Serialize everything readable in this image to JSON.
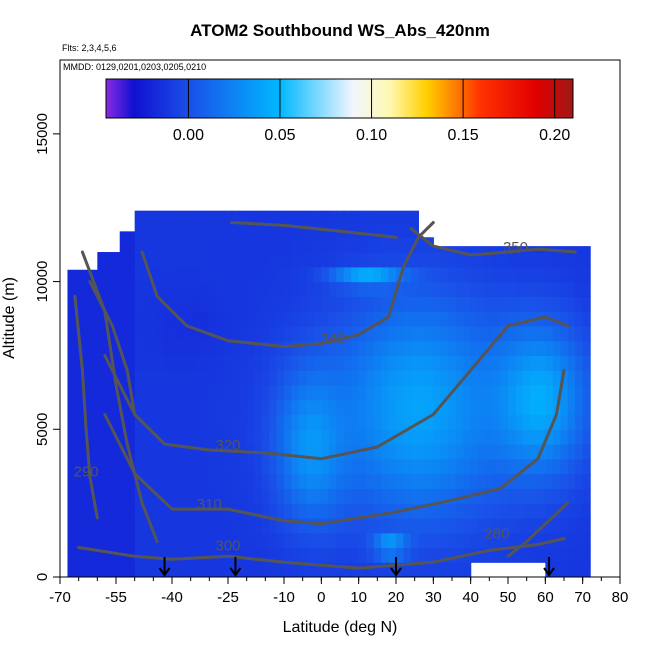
{
  "chart_data": {
    "type": "heatmap",
    "title": "ATOM2 Southbound WS_Abs_420nm",
    "flights_label": "Flts: 2,3,4,5,6",
    "mmdd_label": "MMDD: 0129,0201,0203,0205,0210",
    "xlabel": "Latitude (deg N)",
    "ylabel": "Altitude (m)",
    "xlim": [
      -70,
      80
    ],
    "ylim": [
      0,
      17500
    ],
    "x_ticks": [
      {
        "value": -70,
        "label": "-70"
      },
      {
        "value": -55,
        "label": "-55"
      },
      {
        "value": -40,
        "label": "-40"
      },
      {
        "value": -25,
        "label": "-25"
      },
      {
        "value": -10,
        "label": "-10"
      },
      {
        "value": 0,
        "label": "0"
      },
      {
        "value": 10,
        "label": "10"
      },
      {
        "value": 20,
        "label": "20"
      },
      {
        "value": 30,
        "label": "30"
      },
      {
        "value": 40,
        "label": "40"
      },
      {
        "value": 50,
        "label": "50"
      },
      {
        "value": 60,
        "label": "60"
      },
      {
        "value": 70,
        "label": "70"
      },
      {
        "value": 80,
        "label": "80"
      }
    ],
    "y_ticks": [
      {
        "value": 0,
        "label": "0"
      },
      {
        "value": 5000,
        "label": "5000"
      },
      {
        "value": 10000,
        "label": "10000"
      },
      {
        "value": 15000,
        "label": "15000"
      }
    ],
    "colorbar": {
      "range": [
        -0.045,
        0.21
      ],
      "ticks": [
        {
          "value": 0.0,
          "label": "0.00"
        },
        {
          "value": 0.05,
          "label": "0.05"
        },
        {
          "value": 0.1,
          "label": "0.10"
        },
        {
          "value": 0.15,
          "label": "0.15"
        },
        {
          "value": 0.2,
          "label": "0.20"
        }
      ],
      "stops": [
        {
          "value": -0.045,
          "color": "#8a2be2"
        },
        {
          "value": -0.03,
          "color": "#1010d0"
        },
        {
          "value": 0.0,
          "color": "#1a4fe8"
        },
        {
          "value": 0.05,
          "color": "#00b8ff"
        },
        {
          "value": 0.09,
          "color": "#f2f6ff"
        },
        {
          "value": 0.11,
          "color": "#fff8b0"
        },
        {
          "value": 0.13,
          "color": "#ffd000"
        },
        {
          "value": 0.16,
          "color": "#ff3000"
        },
        {
          "value": 0.19,
          "color": "#e00000"
        },
        {
          "value": 0.21,
          "color": "#a01818"
        }
      ]
    },
    "grid": false,
    "data_region": {
      "lat_min": -68,
      "lat_max": 71,
      "alt_min": 0,
      "alt_max": 12500
    },
    "highlight_patches": [
      {
        "lat": [
          -10,
          5
        ],
        "alt": [
          2500,
          6500
        ],
        "value": 0.035
      },
      {
        "lat": [
          10,
          42
        ],
        "alt": [
          3000,
          8500
        ],
        "value": 0.04
      },
      {
        "lat": [
          48,
          68
        ],
        "alt": [
          4000,
          8000
        ],
        "value": 0.045
      },
      {
        "lat": [
          5,
          20
        ],
        "alt": [
          9900,
          10400
        ],
        "value": 0.048
      },
      {
        "lat": [
          15,
          22
        ],
        "alt": [
          800,
          1300
        ],
        "value": 0.05
      },
      {
        "lat": [
          -45,
          -28
        ],
        "alt": [
          7500,
          9500
        ],
        "value": -0.015
      }
    ],
    "contours": [
      {
        "label": "300",
        "label_at": [
          -25,
          900
        ],
        "points": [
          [
            -65,
            1000
          ],
          [
            -50,
            700
          ],
          [
            -40,
            600
          ],
          [
            -25,
            700
          ],
          [
            -10,
            500
          ],
          [
            10,
            300
          ],
          [
            30,
            500
          ],
          [
            45,
            900
          ],
          [
            58,
            1100
          ],
          [
            65,
            1300
          ]
        ]
      },
      {
        "label": "310",
        "label_at": [
          -30,
          2300
        ],
        "points": [
          [
            -58,
            5500
          ],
          [
            -50,
            3500
          ],
          [
            -40,
            2300
          ],
          [
            -25,
            2300
          ],
          [
            -10,
            1900
          ],
          [
            0,
            1800
          ],
          [
            10,
            2000
          ],
          [
            20,
            2200
          ],
          [
            35,
            2600
          ],
          [
            48,
            3000
          ],
          [
            58,
            4000
          ],
          [
            63,
            5500
          ],
          [
            65,
            7000
          ]
        ]
      },
      {
        "label": "320",
        "label_at": [
          -25,
          4300
        ],
        "points": [
          [
            -58,
            7500
          ],
          [
            -50,
            5500
          ],
          [
            -42,
            4500
          ],
          [
            -30,
            4300
          ],
          [
            -15,
            4200
          ],
          [
            0,
            4000
          ],
          [
            15,
            4400
          ],
          [
            30,
            5500
          ],
          [
            40,
            7000
          ],
          [
            50,
            8500
          ],
          [
            60,
            8800
          ],
          [
            66,
            8500
          ]
        ]
      },
      {
        "label": "340",
        "label_at": [
          3,
          7900
        ],
        "points": [
          [
            -48,
            11000
          ],
          [
            -44,
            9500
          ],
          [
            -36,
            8500
          ],
          [
            -25,
            8000
          ],
          [
            -10,
            7800
          ],
          [
            0,
            7900
          ],
          [
            10,
            8200
          ],
          [
            18,
            8800
          ],
          [
            22,
            10500
          ],
          [
            26,
            11500
          ],
          [
            30,
            12000
          ]
        ]
      },
      {
        "label": "350",
        "label_at": [
          52,
          11000
        ],
        "points": [
          [
            24,
            11800
          ],
          [
            30,
            11200
          ],
          [
            40,
            10900
          ],
          [
            50,
            11000
          ],
          [
            58,
            11100
          ],
          [
            68,
            11000
          ]
        ]
      },
      {
        "label": "280",
        "label_at": [
          47,
          1300
        ],
        "points": [
          [
            50,
            700
          ],
          [
            55,
            1200
          ],
          [
            60,
            1800
          ],
          [
            66,
            2500
          ]
        ]
      },
      {
        "label": "290",
        "label_at": [
          -63,
          3400
        ],
        "points": [
          [
            -66,
            9500
          ],
          [
            -64,
            7000
          ],
          [
            -63,
            5000
          ],
          [
            -62,
            3400
          ],
          [
            -60,
            2000
          ]
        ]
      },
      {
        "label": "",
        "label_at": null,
        "points": [
          [
            -64,
            11000
          ],
          [
            -58,
            9000
          ],
          [
            -55,
            6500
          ],
          [
            -52,
            4500
          ],
          [
            -48,
            2500
          ],
          [
            -44,
            1200
          ]
        ]
      },
      {
        "label": "",
        "label_at": null,
        "points": [
          [
            -62,
            10000
          ],
          [
            -56,
            8500
          ],
          [
            -52,
            7000
          ],
          [
            -50,
            5500
          ]
        ]
      },
      {
        "label": "",
        "label_at": null,
        "points": [
          [
            -24,
            12000
          ],
          [
            -10,
            11900
          ],
          [
            5,
            11700
          ],
          [
            20,
            11500
          ]
        ]
      }
    ],
    "flight_markers_lat": [
      -42,
      -23,
      20,
      61
    ]
  }
}
